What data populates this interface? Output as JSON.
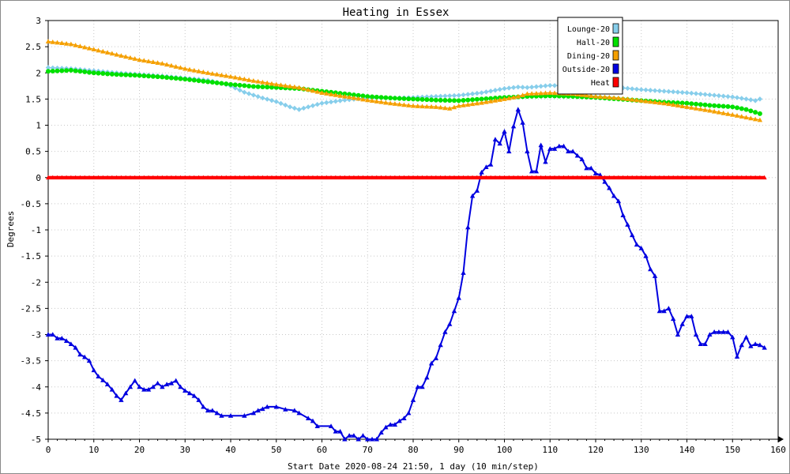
{
  "chart_data": {
    "type": "line",
    "title": "Heating in Essex",
    "xlabel": "Start Date 2020-08-24 21:50, 1 day (10 min/step)",
    "ylabel": "Degrees",
    "xlim": [
      0,
      160
    ],
    "ylim": [
      -5,
      3
    ],
    "x_ticks": [
      "0",
      "10",
      "20",
      "30",
      "40",
      "50",
      "60",
      "70",
      "80",
      "90",
      "100",
      "110",
      "120",
      "130",
      "140",
      "150",
      "160"
    ],
    "y_ticks": [
      "-5",
      "-4.5",
      "-4",
      "-3.5",
      "-3",
      "-2.5",
      "-2",
      "-1.5",
      "-1",
      "-0.5",
      "0",
      "0.5",
      "1",
      "1.5",
      "2",
      "2.5",
      "3"
    ],
    "grid": true,
    "legend_position": "top-right",
    "series": [
      {
        "name": "Lounge-20",
        "color": "#87ceeb",
        "marker": "diamond",
        "points": [
          [
            0,
            2.1
          ],
          [
            5,
            2.08
          ],
          [
            10,
            2.04
          ],
          [
            15,
            2.0
          ],
          [
            20,
            1.97
          ],
          [
            25,
            1.94
          ],
          [
            30,
            1.9
          ],
          [
            35,
            1.86
          ],
          [
            38,
            1.8
          ],
          [
            40,
            1.75
          ],
          [
            43,
            1.63
          ],
          [
            47,
            1.52
          ],
          [
            50,
            1.45
          ],
          [
            53,
            1.35
          ],
          [
            55,
            1.3
          ],
          [
            57,
            1.35
          ],
          [
            60,
            1.42
          ],
          [
            65,
            1.48
          ],
          [
            70,
            1.52
          ],
          [
            75,
            1.52
          ],
          [
            80,
            1.53
          ],
          [
            85,
            1.55
          ],
          [
            90,
            1.57
          ],
          [
            95,
            1.62
          ],
          [
            100,
            1.7
          ],
          [
            103,
            1.73
          ],
          [
            105,
            1.72
          ],
          [
            110,
            1.76
          ],
          [
            115,
            1.75
          ],
          [
            120,
            1.73
          ],
          [
            125,
            1.72
          ],
          [
            130,
            1.68
          ],
          [
            135,
            1.65
          ],
          [
            140,
            1.62
          ],
          [
            145,
            1.58
          ],
          [
            150,
            1.54
          ],
          [
            153,
            1.5
          ],
          [
            155,
            1.47
          ],
          [
            156,
            1.5
          ]
        ]
      },
      {
        "name": "Hall-20",
        "color": "#00e000",
        "marker": "circle",
        "points": [
          [
            0,
            2.03
          ],
          [
            5,
            2.05
          ],
          [
            10,
            2.0
          ],
          [
            15,
            1.97
          ],
          [
            20,
            1.95
          ],
          [
            25,
            1.92
          ],
          [
            30,
            1.88
          ],
          [
            35,
            1.83
          ],
          [
            40,
            1.78
          ],
          [
            45,
            1.74
          ],
          [
            50,
            1.72
          ],
          [
            55,
            1.7
          ],
          [
            60,
            1.65
          ],
          [
            65,
            1.6
          ],
          [
            70,
            1.55
          ],
          [
            75,
            1.52
          ],
          [
            80,
            1.5
          ],
          [
            85,
            1.48
          ],
          [
            90,
            1.47
          ],
          [
            95,
            1.5
          ],
          [
            100,
            1.53
          ],
          [
            105,
            1.55
          ],
          [
            110,
            1.56
          ],
          [
            115,
            1.55
          ],
          [
            120,
            1.53
          ],
          [
            125,
            1.5
          ],
          [
            130,
            1.47
          ],
          [
            135,
            1.44
          ],
          [
            140,
            1.42
          ],
          [
            145,
            1.38
          ],
          [
            150,
            1.35
          ],
          [
            153,
            1.3
          ],
          [
            156,
            1.22
          ]
        ]
      },
      {
        "name": "Dining-20",
        "color": "#f5a000",
        "marker": "triangle",
        "points": [
          [
            0,
            2.6
          ],
          [
            5,
            2.55
          ],
          [
            10,
            2.45
          ],
          [
            15,
            2.35
          ],
          [
            20,
            2.25
          ],
          [
            25,
            2.18
          ],
          [
            30,
            2.08
          ],
          [
            35,
            2.0
          ],
          [
            40,
            1.93
          ],
          [
            45,
            1.85
          ],
          [
            50,
            1.78
          ],
          [
            55,
            1.72
          ],
          [
            60,
            1.62
          ],
          [
            65,
            1.55
          ],
          [
            70,
            1.48
          ],
          [
            75,
            1.42
          ],
          [
            80,
            1.37
          ],
          [
            85,
            1.35
          ],
          [
            88,
            1.32
          ],
          [
            90,
            1.37
          ],
          [
            95,
            1.43
          ],
          [
            100,
            1.5
          ],
          [
            103,
            1.55
          ],
          [
            105,
            1.6
          ],
          [
            110,
            1.62
          ],
          [
            115,
            1.6
          ],
          [
            120,
            1.55
          ],
          [
            125,
            1.52
          ],
          [
            130,
            1.47
          ],
          [
            135,
            1.42
          ],
          [
            140,
            1.35
          ],
          [
            145,
            1.28
          ],
          [
            150,
            1.2
          ],
          [
            153,
            1.15
          ],
          [
            156,
            1.1
          ]
        ]
      },
      {
        "name": "Outside-20",
        "color": "#0000e0",
        "marker": "triangle",
        "points": [
          [
            0,
            -3.0
          ],
          [
            1,
            -3.0
          ],
          [
            2,
            -3.07
          ],
          [
            3,
            -3.07
          ],
          [
            4,
            -3.12
          ],
          [
            5,
            -3.18
          ],
          [
            6,
            -3.25
          ],
          [
            7,
            -3.38
          ],
          [
            8,
            -3.43
          ],
          [
            9,
            -3.5
          ],
          [
            10,
            -3.68
          ],
          [
            11,
            -3.8
          ],
          [
            12,
            -3.87
          ],
          [
            13,
            -3.95
          ],
          [
            14,
            -4.05
          ],
          [
            15,
            -4.17
          ],
          [
            16,
            -4.25
          ],
          [
            17,
            -4.12
          ],
          [
            18,
            -4.0
          ],
          [
            19,
            -3.88
          ],
          [
            20,
            -4.0
          ],
          [
            21,
            -4.05
          ],
          [
            22,
            -4.05
          ],
          [
            23,
            -4.0
          ],
          [
            24,
            -3.93
          ],
          [
            25,
            -4.0
          ],
          [
            26,
            -3.95
          ],
          [
            27,
            -3.93
          ],
          [
            28,
            -3.88
          ],
          [
            29,
            -4.0
          ],
          [
            30,
            -4.07
          ],
          [
            31,
            -4.12
          ],
          [
            32,
            -4.17
          ],
          [
            33,
            -4.25
          ],
          [
            34,
            -4.38
          ],
          [
            35,
            -4.45
          ],
          [
            36,
            -4.45
          ],
          [
            37,
            -4.5
          ],
          [
            38,
            -4.55
          ],
          [
            40,
            -4.55
          ],
          [
            43,
            -4.55
          ],
          [
            45,
            -4.5
          ],
          [
            46,
            -4.45
          ],
          [
            47,
            -4.42
          ],
          [
            48,
            -4.38
          ],
          [
            50,
            -4.38
          ],
          [
            52,
            -4.43
          ],
          [
            54,
            -4.45
          ],
          [
            55,
            -4.5
          ],
          [
            57,
            -4.6
          ],
          [
            58,
            -4.65
          ],
          [
            59,
            -4.75
          ],
          [
            62,
            -4.75
          ],
          [
            63,
            -4.85
          ],
          [
            64,
            -4.85
          ],
          [
            65,
            -5.0
          ],
          [
            66,
            -4.93
          ],
          [
            67,
            -4.93
          ],
          [
            68,
            -5.0
          ],
          [
            69,
            -4.93
          ],
          [
            70,
            -5.0
          ],
          [
            71,
            -5.0
          ],
          [
            72,
            -5.0
          ],
          [
            73,
            -4.87
          ],
          [
            74,
            -4.77
          ],
          [
            75,
            -4.72
          ],
          [
            76,
            -4.72
          ],
          [
            77,
            -4.65
          ],
          [
            78,
            -4.6
          ],
          [
            79,
            -4.5
          ],
          [
            80,
            -4.25
          ],
          [
            81,
            -4.0
          ],
          [
            82,
            -4.0
          ],
          [
            83,
            -3.82
          ],
          [
            84,
            -3.55
          ],
          [
            85,
            -3.45
          ],
          [
            86,
            -3.2
          ],
          [
            87,
            -2.95
          ],
          [
            88,
            -2.8
          ],
          [
            89,
            -2.55
          ],
          [
            90,
            -2.3
          ],
          [
            91,
            -1.82
          ],
          [
            92,
            -0.95
          ],
          [
            93,
            -0.35
          ],
          [
            94,
            -0.25
          ],
          [
            95,
            0.1
          ],
          [
            96,
            0.2
          ],
          [
            97,
            0.25
          ],
          [
            98,
            0.73
          ],
          [
            99,
            0.65
          ],
          [
            100,
            0.88
          ],
          [
            101,
            0.5
          ],
          [
            102,
            0.98
          ],
          [
            103,
            1.3
          ],
          [
            104,
            1.05
          ],
          [
            105,
            0.5
          ],
          [
            106,
            0.12
          ],
          [
            107,
            0.12
          ],
          [
            108,
            0.62
          ],
          [
            109,
            0.3
          ],
          [
            110,
            0.55
          ],
          [
            111,
            0.55
          ],
          [
            112,
            0.6
          ],
          [
            113,
            0.6
          ],
          [
            114,
            0.5
          ],
          [
            115,
            0.5
          ],
          [
            116,
            0.42
          ],
          [
            117,
            0.35
          ],
          [
            118,
            0.18
          ],
          [
            119,
            0.18
          ],
          [
            120,
            0.08
          ],
          [
            121,
            0.05
          ],
          [
            122,
            -0.08
          ],
          [
            123,
            -0.2
          ],
          [
            124,
            -0.35
          ],
          [
            125,
            -0.45
          ],
          [
            126,
            -0.72
          ],
          [
            127,
            -0.9
          ],
          [
            128,
            -1.1
          ],
          [
            129,
            -1.28
          ],
          [
            130,
            -1.35
          ],
          [
            131,
            -1.5
          ],
          [
            132,
            -1.75
          ],
          [
            133,
            -1.88
          ],
          [
            134,
            -2.55
          ],
          [
            135,
            -2.55
          ],
          [
            136,
            -2.5
          ],
          [
            137,
            -2.7
          ],
          [
            138,
            -3.0
          ],
          [
            139,
            -2.8
          ],
          [
            140,
            -2.65
          ],
          [
            141,
            -2.65
          ],
          [
            142,
            -3.0
          ],
          [
            143,
            -3.18
          ],
          [
            144,
            -3.18
          ],
          [
            145,
            -3.0
          ],
          [
            146,
            -2.95
          ],
          [
            147,
            -2.95
          ],
          [
            148,
            -2.95
          ],
          [
            149,
            -2.95
          ],
          [
            150,
            -3.05
          ],
          [
            151,
            -3.42
          ],
          [
            152,
            -3.2
          ],
          [
            153,
            -3.05
          ],
          [
            154,
            -3.22
          ],
          [
            155,
            -3.18
          ],
          [
            156,
            -3.2
          ],
          [
            157,
            -3.25
          ]
        ]
      },
      {
        "name": "Heat",
        "color": "#ff0000",
        "marker": "triangle",
        "points": [
          [
            0,
            0.0
          ],
          [
            157,
            0.0
          ]
        ]
      }
    ]
  }
}
